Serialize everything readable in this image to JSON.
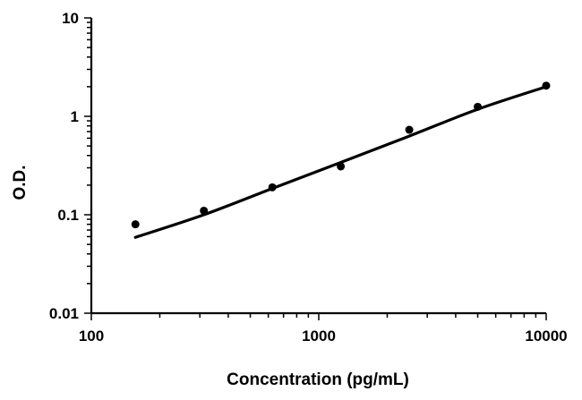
{
  "chart_data": {
    "type": "scatter",
    "xlabel": "Concentration (pg/mL)",
    "ylabel": "O.D.",
    "x_scale": "log",
    "y_scale": "log",
    "xlim": [
      100,
      10000
    ],
    "ylim": [
      0.01,
      10
    ],
    "x_ticks": [
      "100",
      "1000",
      "10000"
    ],
    "y_ticks": [
      "0.01",
      "0.1",
      "1",
      "10"
    ],
    "grid": false,
    "series": [
      {
        "points": [
          {
            "x": 156.25,
            "y": 0.08
          },
          {
            "x": 312.5,
            "y": 0.11
          },
          {
            "x": 625,
            "y": 0.19
          },
          {
            "x": 1250,
            "y": 0.31
          },
          {
            "x": 2500,
            "y": 0.73
          },
          {
            "x": 5000,
            "y": 1.25
          },
          {
            "x": 10000,
            "y": 2.05
          }
        ]
      }
    ],
    "fit_curve": {
      "points": [
        {
          "x": 156.25,
          "y": 0.059
        },
        {
          "x": 312.5,
          "y": 0.1
        },
        {
          "x": 625,
          "y": 0.185
        },
        {
          "x": 1250,
          "y": 0.34
        },
        {
          "x": 2500,
          "y": 0.63
        },
        {
          "x": 5000,
          "y": 1.18
        },
        {
          "x": 10000,
          "y": 2.0
        }
      ]
    },
    "colors": {
      "line": "#000000",
      "points": "#000000",
      "axes": "#000000"
    }
  }
}
